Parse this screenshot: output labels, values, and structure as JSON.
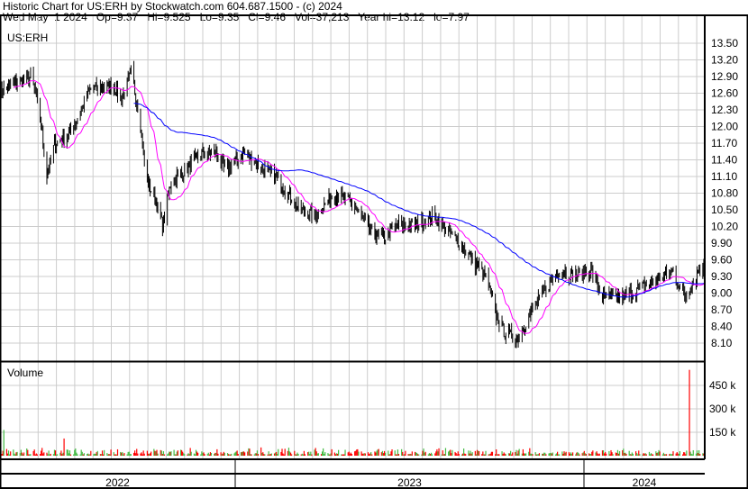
{
  "header": {
    "title": "Historic Chart for US:ERH by Stockwatch.com 604.687.1500 - (c) 2024",
    "quote": "Wed May  1 2024   Op=9.37   Hi=9.525   Lo=9.35   Cl=9.46   Vol=37,213   Year hi=13.12   lo=7.97"
  },
  "colors": {
    "up": "#00a000",
    "down": "#ff0000",
    "ma_short": "#ff00ff",
    "ma_long": "#0000ff",
    "vol_up": "#44bb44",
    "vol_down": "#ff0000",
    "grid": "#cccccc"
  },
  "chart_data": {
    "type": "ohlc",
    "symbol_label": "US:ERH",
    "volume_label": "Volume",
    "price_ticks": [
      "13.50",
      "13.20",
      "12.90",
      "12.60",
      "12.30",
      "12.00",
      "11.70",
      "11.40",
      "11.10",
      "10.80",
      "10.50",
      "10.20",
      "9.90",
      "9.60",
      "9.30",
      "9.00",
      "8.70",
      "8.40",
      "8.10"
    ],
    "price_range": [
      8.1,
      13.5
    ],
    "volume_ticks": [
      "150 k",
      "300 k",
      "450 k"
    ],
    "volume_tick_values": [
      150000,
      300000,
      450000
    ],
    "year_labels": [
      "2022",
      "2023",
      "2024"
    ],
    "date_range": [
      "2022-04-25",
      "2024-05-01"
    ],
    "grid": true,
    "approx_close": [
      [
        "2022-04-30",
        12.66
      ],
      [
        "2022-05-14",
        12.82
      ],
      [
        "2022-05-28",
        12.9
      ],
      [
        "2022-06-06",
        12.17
      ],
      [
        "2022-06-13",
        11.12
      ],
      [
        "2022-06-21",
        11.68
      ],
      [
        "2022-07-09",
        11.93
      ],
      [
        "2022-07-28",
        12.66
      ],
      [
        "2022-08-21",
        12.74
      ],
      [
        "2022-08-30",
        12.5
      ],
      [
        "2022-09-09",
        12.98
      ],
      [
        "2022-09-18",
        12.17
      ],
      [
        "2022-09-25",
        11.03
      ],
      [
        "2022-10-04",
        10.71
      ],
      [
        "2022-10-12",
        10.22
      ],
      [
        "2022-10-21",
        11.03
      ],
      [
        "2022-11-04",
        11.2
      ],
      [
        "2022-11-23",
        11.52
      ],
      [
        "2022-12-07",
        11.52
      ],
      [
        "2022-12-17",
        11.2
      ],
      [
        "2023-01-05",
        11.52
      ],
      [
        "2023-01-23",
        11.28
      ],
      [
        "2023-02-11",
        11.03
      ],
      [
        "2023-03-02",
        10.55
      ],
      [
        "2023-03-21",
        10.39
      ],
      [
        "2023-04-09",
        10.79
      ],
      [
        "2023-04-28",
        10.63
      ],
      [
        "2023-05-17",
        10.14
      ],
      [
        "2023-05-31",
        9.98
      ],
      [
        "2023-06-14",
        10.22
      ],
      [
        "2023-07-03",
        10.22
      ],
      [
        "2023-07-22",
        10.39
      ],
      [
        "2023-08-05",
        10.14
      ],
      [
        "2023-08-19",
        9.9
      ],
      [
        "2023-09-02",
        9.58
      ],
      [
        "2023-09-16",
        9.25
      ],
      [
        "2023-09-26",
        8.6
      ],
      [
        "2023-10-05",
        8.28
      ],
      [
        "2023-10-19",
        8.2
      ],
      [
        "2023-11-02",
        8.68
      ],
      [
        "2023-11-17",
        9.09
      ],
      [
        "2023-12-01",
        9.41
      ],
      [
        "2023-12-15",
        9.33
      ],
      [
        "2024-01-03",
        9.41
      ],
      [
        "2024-01-15",
        8.93
      ],
      [
        "2024-02-05",
        8.93
      ],
      [
        "2024-02-24",
        9.09
      ],
      [
        "2024-03-13",
        9.25
      ],
      [
        "2024-03-28",
        9.41
      ],
      [
        "2024-04-11",
        8.93
      ],
      [
        "2024-04-25",
        9.41
      ],
      [
        "2024-05-01",
        9.46
      ]
    ],
    "notable_volume": [
      [
        "2022-04-29",
        165000,
        "up"
      ],
      [
        "2022-06-31",
        110000,
        "down"
      ],
      [
        "2024-04-15",
        550000,
        "down"
      ]
    ],
    "last_bar": {
      "date": "2024-05-01",
      "open": 9.37,
      "high": 9.525,
      "low": 9.35,
      "close": 9.46,
      "volume": 37213
    }
  }
}
